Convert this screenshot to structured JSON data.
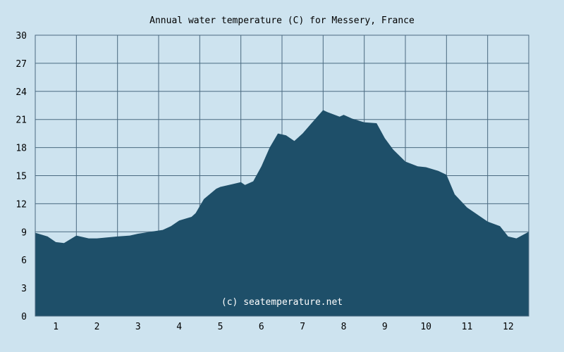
{
  "chart_data": {
    "type": "area",
    "title": "Annual water temperature (C) for Messery, France",
    "xlabel": "",
    "ylabel": "",
    "ylim": [
      0,
      30
    ],
    "xlim": [
      0.5,
      12.5
    ],
    "yticks": [
      "0",
      "3",
      "6",
      "9",
      "12",
      "15",
      "18",
      "21",
      "24",
      "27",
      "30"
    ],
    "xticks": [
      "1",
      "2",
      "3",
      "4",
      "5",
      "6",
      "7",
      "8",
      "9",
      "10",
      "11",
      "12"
    ],
    "grid": true,
    "legend": "none",
    "watermark": "(c) seatemperature.net",
    "x": [
      0.5,
      0.8,
      1.0,
      1.2,
      1.5,
      1.8,
      2.0,
      2.5,
      2.8,
      3.0,
      3.3,
      3.6,
      3.8,
      4.0,
      4.3,
      4.4,
      4.6,
      4.9,
      5.0,
      5.3,
      5.5,
      5.6,
      5.8,
      6.0,
      6.2,
      6.4,
      6.6,
      6.8,
      7.0,
      7.2,
      7.5,
      7.6,
      7.9,
      8.0,
      8.2,
      8.5,
      8.8,
      9.0,
      9.2,
      9.5,
      9.8,
      10.0,
      10.3,
      10.5,
      10.7,
      11.0,
      11.2,
      11.5,
      11.8,
      12.0,
      12.2,
      12.5
    ],
    "values": [
      8.9,
      8.5,
      7.9,
      7.8,
      8.6,
      8.3,
      8.3,
      8.5,
      8.6,
      8.8,
      9.0,
      9.2,
      9.6,
      10.2,
      10.6,
      11.0,
      12.5,
      13.6,
      13.8,
      14.1,
      14.3,
      14.0,
      14.4,
      16.0,
      18.0,
      19.5,
      19.3,
      18.7,
      19.5,
      20.5,
      22.0,
      21.8,
      21.3,
      21.5,
      21.1,
      20.7,
      20.6,
      19.0,
      17.8,
      16.5,
      16.0,
      15.9,
      15.5,
      15.1,
      13.0,
      11.6,
      11.0,
      10.1,
      9.6,
      8.5,
      8.3,
      9.0
    ],
    "colors": {
      "background": "#cde3ef",
      "fill": "#1e4f69",
      "grid": "#4a6a80"
    }
  }
}
